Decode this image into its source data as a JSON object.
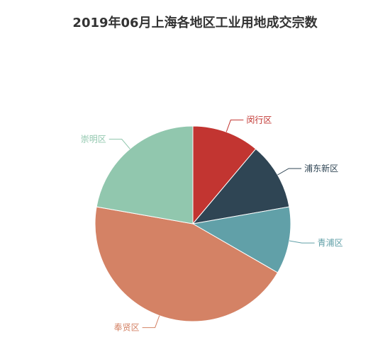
{
  "chart_data": {
    "type": "pie",
    "title": "2019年06月上海各地区工业用地成交宗数",
    "slices": [
      {
        "label": "闵行区",
        "value": 1,
        "color": "#c23531"
      },
      {
        "label": "浦东新区",
        "value": 1,
        "color": "#2f4554"
      },
      {
        "label": "青浦区",
        "value": 1,
        "color": "#61a0a8"
      },
      {
        "label": "奉贤区",
        "value": 4,
        "color": "#d48265"
      },
      {
        "label": "崇明区",
        "value": 2,
        "color": "#91c7ae"
      }
    ],
    "legend": "none"
  }
}
